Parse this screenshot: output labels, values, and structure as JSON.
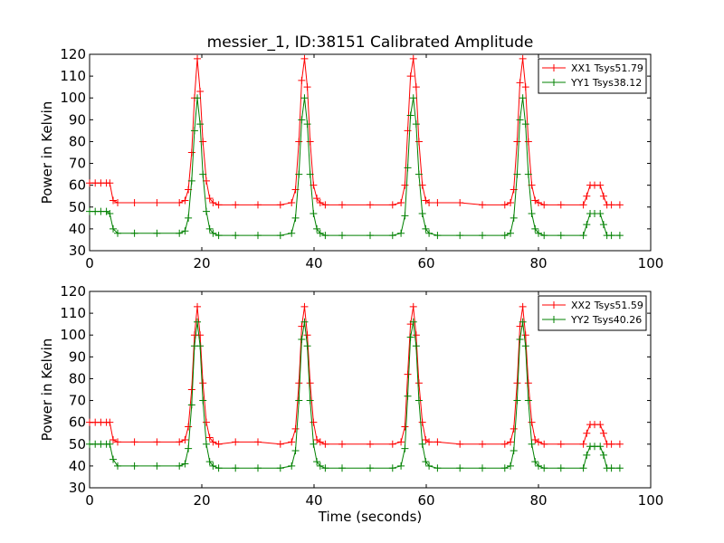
{
  "title": "messier_1, ID:38151 Calibrated Amplitude",
  "colors": {
    "XX": "#ff0000",
    "YY": "#008000"
  },
  "chart_data": [
    {
      "type": "line",
      "title": "messier_1, ID:38151 Calibrated Amplitude",
      "xlabel": "",
      "ylabel": "Power in Kelvin",
      "xlim": [
        0,
        100
      ],
      "ylim": [
        30,
        120
      ],
      "xticks": [
        0,
        20,
        40,
        60,
        80,
        100
      ],
      "yticks": [
        30,
        40,
        50,
        60,
        70,
        80,
        90,
        100,
        110,
        120
      ],
      "legend_position": "top-right",
      "marker": "+",
      "series": [
        {
          "name": "XX1 Tsys51.79",
          "color": "#ff0000",
          "x": [
            0,
            1,
            2,
            3,
            3.6,
            4.2,
            5,
            8,
            12,
            16,
            17,
            17.6,
            18.2,
            18.7,
            19.2,
            19.7,
            20.2,
            20.8,
            21.4,
            22,
            23,
            26,
            30,
            34,
            36,
            36.7,
            37.3,
            37.8,
            38.3,
            38.8,
            39.3,
            39.9,
            40.5,
            41.1,
            42,
            45,
            50,
            54,
            55.5,
            56.2,
            56.7,
            57.2,
            57.7,
            58.2,
            58.7,
            59.3,
            59.9,
            60.5,
            62,
            66,
            70,
            74,
            75,
            75.6,
            76.2,
            76.7,
            77.2,
            77.7,
            78.2,
            78.8,
            79.4,
            80,
            81,
            84,
            88,
            88.6,
            89.2,
            90,
            91,
            91.6,
            92.2,
            93,
            94.5
          ],
          "values": [
            61,
            61,
            61,
            61,
            61,
            53,
            52,
            52,
            52,
            52,
            53,
            58,
            75,
            100,
            118,
            103,
            80,
            62,
            54,
            52,
            51,
            51,
            51,
            51,
            52,
            58,
            80,
            108,
            118,
            105,
            80,
            60,
            54,
            52,
            51,
            51,
            51,
            51,
            52,
            60,
            85,
            110,
            118,
            105,
            80,
            60,
            53,
            52,
            52,
            52,
            51,
            51,
            52,
            58,
            80,
            107,
            118,
            105,
            80,
            60,
            53,
            52,
            51,
            51,
            51,
            55,
            60,
            60,
            60,
            55,
            51,
            51,
            51
          ]
        },
        {
          "name": "YY1 Tsys38.12",
          "color": "#008000",
          "x": [
            0,
            1,
            2,
            3,
            3.6,
            4.2,
            5,
            8,
            12,
            16,
            17,
            17.6,
            18.2,
            18.7,
            19.2,
            19.7,
            20.2,
            20.8,
            21.4,
            22,
            23,
            26,
            30,
            34,
            36,
            36.7,
            37.3,
            37.8,
            38.3,
            38.8,
            39.3,
            39.9,
            40.5,
            41.1,
            42,
            45,
            50,
            54,
            55.5,
            56.2,
            56.7,
            57.2,
            57.7,
            58.2,
            58.7,
            59.3,
            59.9,
            60.5,
            62,
            66,
            70,
            74,
            75,
            75.6,
            76.2,
            76.7,
            77.2,
            77.7,
            78.2,
            78.8,
            79.4,
            80,
            81,
            84,
            88,
            88.6,
            89.2,
            90,
            91,
            91.6,
            92.2,
            93,
            94.5
          ],
          "values": [
            48,
            48,
            48,
            48,
            47,
            40,
            38,
            38,
            38,
            38,
            39,
            45,
            62,
            85,
            100,
            88,
            65,
            48,
            40,
            38,
            37,
            37,
            37,
            37,
            38,
            45,
            65,
            90,
            100,
            88,
            65,
            47,
            40,
            38,
            37,
            37,
            37,
            37,
            38,
            46,
            68,
            92,
            100,
            88,
            65,
            47,
            40,
            38,
            37,
            37,
            37,
            37,
            38,
            45,
            65,
            90,
            100,
            88,
            65,
            47,
            40,
            38,
            37,
            37,
            37,
            42,
            47,
            47,
            47,
            42,
            37,
            37,
            37
          ]
        }
      ]
    },
    {
      "type": "line",
      "title": "",
      "xlabel": "Time (seconds)",
      "ylabel": "Power in Kelvin",
      "xlim": [
        0,
        100
      ],
      "ylim": [
        30,
        120
      ],
      "xticks": [
        0,
        20,
        40,
        60,
        80,
        100
      ],
      "yticks": [
        30,
        40,
        50,
        60,
        70,
        80,
        90,
        100,
        110,
        120
      ],
      "legend_position": "top-right",
      "marker": "+",
      "series": [
        {
          "name": "XX2 Tsys51.59",
          "color": "#ff0000",
          "x": [
            0,
            1,
            2,
            3,
            3.6,
            4.2,
            5,
            8,
            12,
            16,
            17,
            17.6,
            18.2,
            18.7,
            19.2,
            19.7,
            20.2,
            20.8,
            21.4,
            22,
            23,
            26,
            30,
            34,
            36,
            36.7,
            37.3,
            37.8,
            38.3,
            38.8,
            39.3,
            39.9,
            40.5,
            41.1,
            42,
            45,
            50,
            54,
            55.5,
            56.2,
            56.7,
            57.2,
            57.7,
            58.2,
            58.7,
            59.3,
            59.9,
            60.5,
            62,
            66,
            70,
            74,
            75,
            75.6,
            76.2,
            76.7,
            77.2,
            77.7,
            78.2,
            78.8,
            79.4,
            80,
            81,
            84,
            88,
            88.6,
            89.2,
            90,
            91,
            91.6,
            92.2,
            93,
            94.5
          ],
          "values": [
            60,
            60,
            60,
            60,
            60,
            52,
            51,
            51,
            51,
            51,
            52,
            58,
            75,
            100,
            113,
            100,
            78,
            60,
            53,
            51,
            50,
            51,
            51,
            50,
            51,
            57,
            78,
            104,
            113,
            100,
            78,
            60,
            52,
            51,
            50,
            50,
            50,
            50,
            51,
            58,
            82,
            105,
            113,
            100,
            78,
            60,
            52,
            51,
            51,
            50,
            50,
            50,
            51,
            57,
            78,
            104,
            113,
            100,
            78,
            60,
            52,
            51,
            50,
            50,
            50,
            55,
            59,
            59,
            59,
            55,
            50,
            50,
            50
          ]
        },
        {
          "name": "YY2 Tsys40.26",
          "color": "#008000",
          "x": [
            0,
            1,
            2,
            3,
            3.6,
            4.2,
            5,
            8,
            12,
            16,
            17,
            17.6,
            18.2,
            18.7,
            19.2,
            19.7,
            20.2,
            20.8,
            21.4,
            22,
            23,
            26,
            30,
            34,
            36,
            36.7,
            37.3,
            37.8,
            38.3,
            38.8,
            39.3,
            39.9,
            40.5,
            41.1,
            42,
            45,
            50,
            54,
            55.5,
            56.2,
            56.7,
            57.2,
            57.7,
            58.2,
            58.7,
            59.3,
            59.9,
            60.5,
            62,
            66,
            70,
            74,
            75,
            75.6,
            76.2,
            76.7,
            77.2,
            77.7,
            78.2,
            78.8,
            79.4,
            80,
            81,
            84,
            88,
            88.6,
            89.2,
            90,
            91,
            91.6,
            92.2,
            93,
            94.5
          ],
          "values": [
            50,
            50,
            50,
            50,
            50,
            43,
            40,
            40,
            40,
            40,
            41,
            48,
            68,
            95,
            106,
            95,
            70,
            50,
            42,
            40,
            39,
            39,
            39,
            39,
            40,
            47,
            70,
            98,
            106,
            95,
            70,
            50,
            42,
            40,
            39,
            39,
            39,
            39,
            40,
            48,
            72,
            99,
            106,
            95,
            70,
            50,
            42,
            40,
            39,
            39,
            39,
            39,
            40,
            47,
            70,
            98,
            106,
            95,
            70,
            50,
            42,
            40,
            39,
            39,
            39,
            45,
            49,
            49,
            49,
            45,
            39,
            39,
            39
          ]
        }
      ]
    }
  ]
}
